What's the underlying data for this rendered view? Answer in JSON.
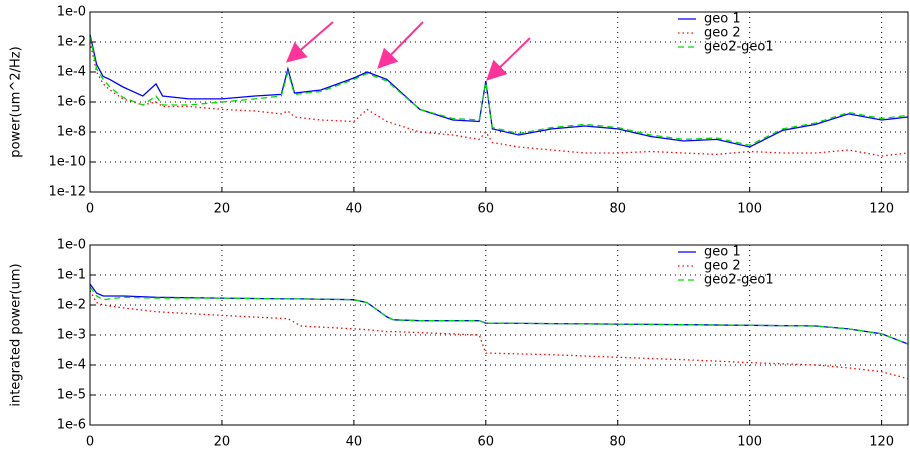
{
  "chart_data": [
    {
      "type": "line",
      "ylabel": "power(um^2/Hz)",
      "log_y": true,
      "grid": true,
      "legend": "upper right",
      "x": [
        0,
        1,
        2,
        3,
        5,
        8,
        10,
        11,
        15,
        20,
        25,
        29,
        30,
        31,
        35,
        40,
        42,
        45,
        50,
        55,
        59,
        60,
        61,
        65,
        70,
        75,
        80,
        85,
        90,
        95,
        100,
        105,
        110,
        115,
        120,
        124
      ],
      "series": [
        {
          "name": "geo 1",
          "color": "#0000ff",
          "dash": "solid",
          "values": [
            0.032,
            0.00032,
            5e-05,
            3.2e-05,
            1e-05,
            2.5e-06,
            1.6e-05,
            2.5e-06,
            1.6e-06,
            1.6e-06,
            2.5e-06,
            3.2e-06,
            0.00016,
            4e-06,
            6.3e-06,
            4e-05,
            0.0001,
            3.2e-05,
            3.2e-07,
            6.3e-08,
            5e-08,
            2.5e-05,
            1.6e-08,
            6.3e-09,
            1.6e-08,
            2.5e-08,
            1.6e-08,
            5e-09,
            2.5e-09,
            3.2e-09,
            1e-09,
            1.3e-08,
            3.2e-08,
            1.6e-07,
            6.3e-08,
            1e-07
          ]
        },
        {
          "name": "geo 2",
          "color": "#ff0000",
          "dash": "dotted",
          "values": [
            0.01,
            0.0001,
            1.6e-05,
            6.3e-06,
            1.6e-06,
            6.3e-07,
            1e-06,
            5e-07,
            5e-07,
            3.2e-07,
            2.5e-07,
            1.6e-07,
            2.5e-07,
            1e-07,
            6.3e-08,
            5e-08,
            3.2e-07,
            5e-08,
            1e-08,
            6.3e-09,
            3.2e-09,
            1e-08,
            2e-09,
            1e-09,
            6.3e-10,
            4e-10,
            4e-10,
            5e-10,
            4e-10,
            3.2e-10,
            5e-10,
            4e-10,
            4e-10,
            6.3e-10,
            2.5e-10,
            4e-10
          ]
        },
        {
          "name": "geo2-geo1",
          "color": "#00dd00",
          "dash": "dashed",
          "values": [
            0.025,
            0.00016,
            3.2e-05,
            1e-05,
            2e-06,
            6.3e-07,
            2.5e-06,
            6.3e-07,
            6.3e-07,
            1e-06,
            1.6e-06,
            2.5e-06,
            0.0001,
            3.2e-06,
            5e-06,
            3.2e-05,
            8e-05,
            2.5e-05,
            3.2e-07,
            8e-08,
            6.3e-08,
            2e-05,
            2e-08,
            8e-09,
            2e-08,
            3.2e-08,
            2e-08,
            6.3e-09,
            3.2e-09,
            4e-09,
            1.3e-09,
            1.6e-08,
            4e-08,
            2e-07,
            8e-08,
            1.3e-07
          ]
        }
      ],
      "xlim": [
        0,
        124
      ],
      "xticks": [
        0,
        20,
        40,
        60,
        80,
        100,
        120
      ],
      "ylim": [
        1e-12,
        1
      ],
      "yticks": [
        {
          "value": 1e-12,
          "label": "1e-12"
        },
        {
          "value": 1e-10,
          "label": "1e-10"
        },
        {
          "value": 1e-08,
          "label": "1e-8"
        },
        {
          "value": 1e-06,
          "label": "1e-6"
        },
        {
          "value": 0.0001,
          "label": "1e-4"
        },
        {
          "value": 0.01,
          "label": "1e-2"
        },
        {
          "value": 1,
          "label": "1e-0"
        }
      ]
    },
    {
      "type": "line",
      "ylabel": "integrated power(um)",
      "log_y": true,
      "grid": true,
      "legend": "upper right",
      "x": [
        0,
        1,
        2,
        5,
        10,
        20,
        30,
        32,
        40,
        42,
        45,
        46,
        50,
        59,
        60,
        70,
        80,
        90,
        100,
        110,
        115,
        120,
        124
      ],
      "series": [
        {
          "name": "geo 1",
          "color": "#0000ff",
          "dash": "solid",
          "values": [
            0.05,
            0.025,
            0.02,
            0.02,
            0.018,
            0.017,
            0.016,
            0.016,
            0.015,
            0.012,
            0.004,
            0.0032,
            0.003,
            0.003,
            0.0025,
            0.0024,
            0.0023,
            0.0022,
            0.0021,
            0.002,
            0.0016,
            0.0011,
            0.0005
          ]
        },
        {
          "name": "geo 2",
          "color": "#ff0000",
          "dash": "dotted",
          "values": [
            0.03,
            0.012,
            0.01,
            0.008,
            0.006,
            0.0045,
            0.0035,
            0.002,
            0.0016,
            0.0015,
            0.0013,
            0.0013,
            0.0012,
            0.001,
            0.00025,
            0.00022,
            0.00018,
            0.00015,
            0.00012,
            0.0001,
            8e-05,
            6e-05,
            3.5e-05
          ]
        },
        {
          "name": "geo2-geo1",
          "color": "#00dd00",
          "dash": "dashed",
          "values": [
            0.04,
            0.02,
            0.015,
            0.018,
            0.017,
            0.017,
            0.016,
            0.016,
            0.015,
            0.012,
            0.004,
            0.0032,
            0.003,
            0.003,
            0.0025,
            0.0024,
            0.0023,
            0.0022,
            0.0021,
            0.002,
            0.0016,
            0.0011,
            0.0005
          ]
        }
      ],
      "xlim": [
        0,
        124
      ],
      "xticks": [
        0,
        20,
        40,
        60,
        80,
        100,
        120
      ],
      "ylim": [
        1e-06,
        1
      ],
      "yticks": [
        {
          "value": 1e-06,
          "label": "1e-6"
        },
        {
          "value": 1e-05,
          "label": "1e-5"
        },
        {
          "value": 0.0001,
          "label": "1e-4"
        },
        {
          "value": 0.001,
          "label": "1e-3"
        },
        {
          "value": 0.01,
          "label": "1e-2"
        },
        {
          "value": 0.1,
          "label": "1e-1"
        },
        {
          "value": 1,
          "label": "1e-0"
        }
      ]
    }
  ]
}
